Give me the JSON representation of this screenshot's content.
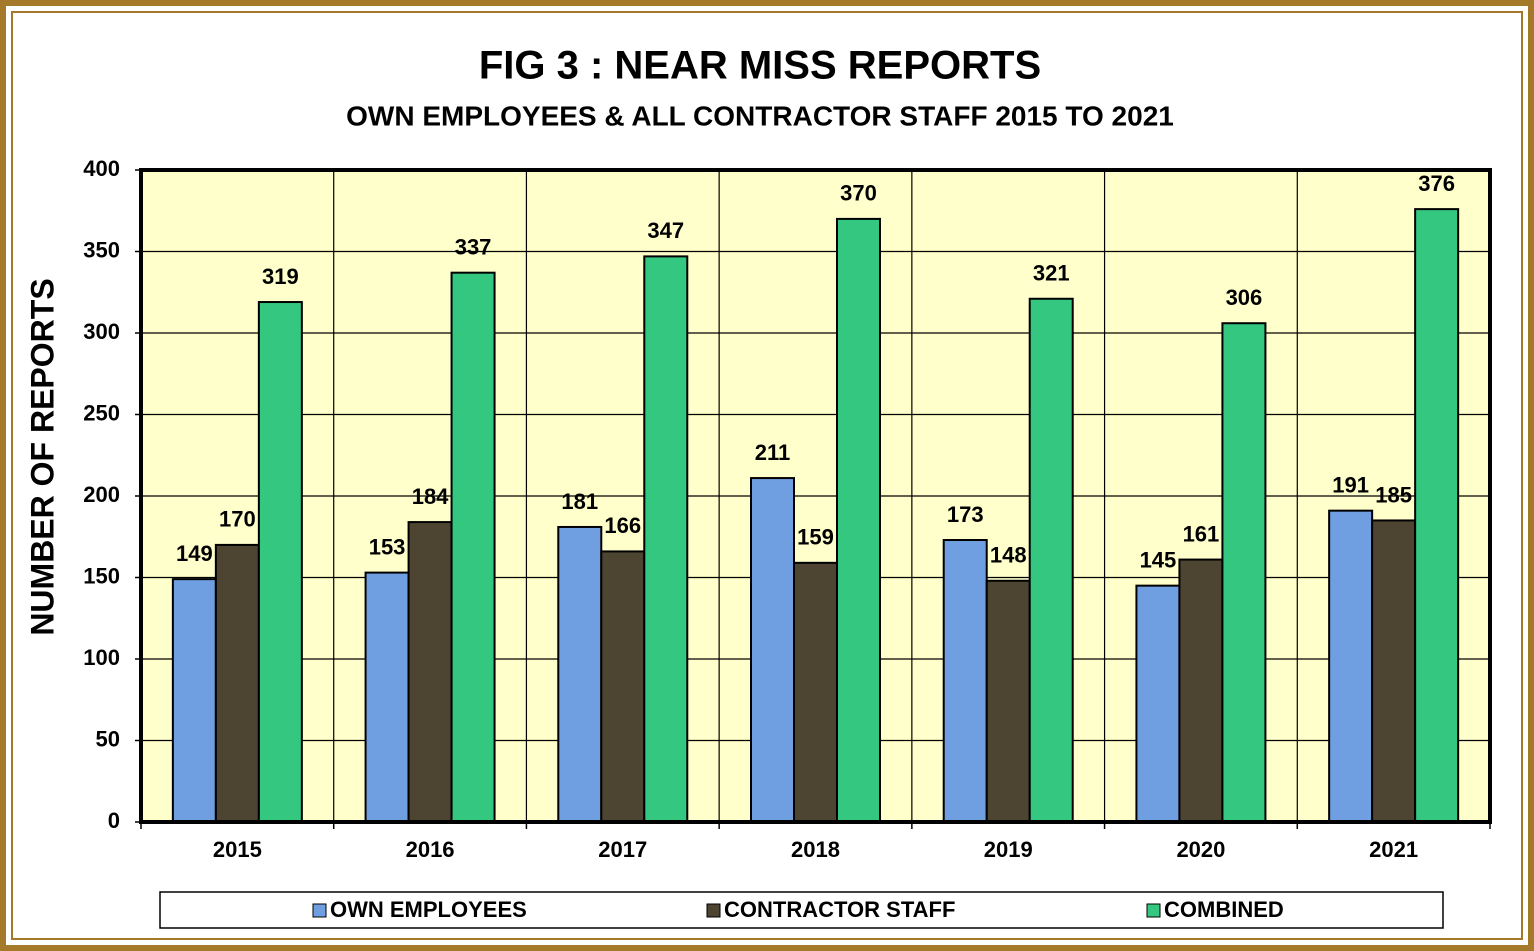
{
  "chart_data": {
    "type": "bar",
    "title": "FIG 3 : NEAR MISS REPORTS",
    "subtitle": "OWN EMPLOYEES & ALL CONTRACTOR STAFF 2015 TO 2021",
    "y_label": "NUMBER OF REPORTS",
    "categories": [
      "2015",
      "2016",
      "2017",
      "2018",
      "2019",
      "2020",
      "2021"
    ],
    "series": [
      {
        "name": "OWN EMPLOYEES",
        "color": "#6f9fe0",
        "values": [
          149,
          153,
          181,
          211,
          173,
          145,
          191
        ]
      },
      {
        "name": "CONTRACTOR STAFF",
        "color": "#4d4532",
        "values": [
          170,
          184,
          166,
          159,
          148,
          161,
          185
        ]
      },
      {
        "name": "COMBINED",
        "color": "#33c77f",
        "values": [
          319,
          337,
          347,
          370,
          321,
          306,
          376
        ]
      }
    ],
    "ylim": [
      0,
      400
    ],
    "yticks": [
      0,
      50,
      100,
      150,
      200,
      250,
      300,
      350,
      400
    ],
    "grid": true,
    "legend": "bottom",
    "plot_background": "#ffffcc"
  }
}
